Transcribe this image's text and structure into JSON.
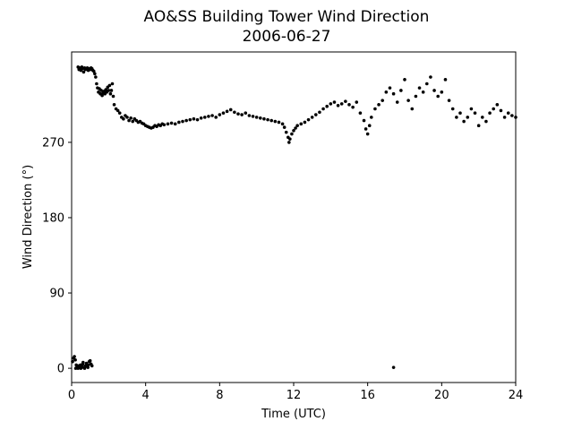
{
  "chart_data": {
    "type": "scatter",
    "title": "AO&SS Building Tower Wind Direction",
    "subtitle": "2006-06-27",
    "xlabel": "Time (UTC)",
    "ylabel": "Wind Direction (°)",
    "xlim": [
      0,
      24
    ],
    "ylim": [
      -17,
      378
    ],
    "xticks": [
      0,
      4,
      8,
      12,
      16,
      20,
      24
    ],
    "yticks": [
      0,
      90,
      180,
      270
    ],
    "grid": false,
    "marker_color": "#000000",
    "series": [
      {
        "points": [
          [
            0.05,
            8
          ],
          [
            0.1,
            12
          ],
          [
            0.15,
            14
          ],
          [
            0.2,
            10
          ],
          [
            0.25,
            4
          ],
          [
            0.3,
            2
          ],
          [
            0.35,
            0
          ],
          [
            0.4,
            3
          ],
          [
            0.45,
            1
          ],
          [
            0.5,
            0
          ],
          [
            0.55,
            2
          ],
          [
            0.6,
            5
          ],
          [
            0.65,
            1
          ],
          [
            0.7,
            0
          ],
          [
            0.75,
            3
          ],
          [
            0.8,
            6
          ],
          [
            0.85,
            2
          ],
          [
            0.9,
            4
          ],
          [
            0.95,
            8
          ],
          [
            1.0,
            9
          ],
          [
            1.05,
            5
          ],
          [
            1.1,
            3
          ],
          [
            0.22,
            0
          ],
          [
            0.48,
            4
          ],
          [
            0.62,
            7
          ],
          [
            0.88,
            1
          ],
          [
            0.35,
            360
          ],
          [
            0.4,
            357
          ],
          [
            0.45,
            359
          ],
          [
            0.5,
            356
          ],
          [
            0.55,
            360
          ],
          [
            0.6,
            358
          ],
          [
            0.65,
            354
          ],
          [
            0.7,
            359
          ],
          [
            0.75,
            357
          ],
          [
            0.8,
            358
          ],
          [
            0.85,
            359
          ],
          [
            0.9,
            356
          ],
          [
            0.95,
            358
          ],
          [
            1.0,
            357
          ],
          [
            1.05,
            359
          ],
          [
            1.1,
            358
          ],
          [
            1.15,
            356
          ],
          [
            1.2,
            355
          ],
          [
            1.25,
            352
          ],
          [
            1.3,
            348
          ],
          [
            1.35,
            340
          ],
          [
            1.4,
            335
          ],
          [
            1.45,
            330
          ],
          [
            1.5,
            334
          ],
          [
            1.55,
            328
          ],
          [
            1.6,
            332
          ],
          [
            1.65,
            326
          ],
          [
            1.7,
            329
          ],
          [
            1.75,
            331
          ],
          [
            1.8,
            328
          ],
          [
            1.85,
            333
          ],
          [
            1.9,
            330
          ],
          [
            1.95,
            336
          ],
          [
            2.0,
            332
          ],
          [
            2.05,
            338
          ],
          [
            2.1,
            328
          ],
          [
            2.15,
            332
          ],
          [
            2.2,
            340
          ],
          [
            2.25,
            325
          ],
          [
            2.3,
            315
          ],
          [
            2.4,
            310
          ],
          [
            2.5,
            308
          ],
          [
            2.6,
            305
          ],
          [
            2.7,
            300
          ],
          [
            2.8,
            298
          ],
          [
            2.9,
            302
          ],
          [
            3.0,
            300
          ],
          [
            3.1,
            296
          ],
          [
            3.2,
            299
          ],
          [
            3.3,
            295
          ],
          [
            3.4,
            298
          ],
          [
            3.5,
            296
          ],
          [
            3.6,
            294
          ],
          [
            3.7,
            295
          ],
          [
            3.8,
            293
          ],
          [
            3.9,
            292
          ],
          [
            4.0,
            290
          ],
          [
            4.1,
            289
          ],
          [
            4.2,
            288
          ],
          [
            4.3,
            287
          ],
          [
            4.4,
            288
          ],
          [
            4.5,
            290
          ],
          [
            4.6,
            289
          ],
          [
            4.7,
            291
          ],
          [
            4.8,
            290
          ],
          [
            4.9,
            292
          ],
          [
            5.0,
            291
          ],
          [
            5.2,
            292
          ],
          [
            5.4,
            293
          ],
          [
            5.6,
            292
          ],
          [
            5.8,
            294
          ],
          [
            6.0,
            295
          ],
          [
            6.2,
            296
          ],
          [
            6.4,
            297
          ],
          [
            6.6,
            298
          ],
          [
            6.8,
            297
          ],
          [
            7.0,
            299
          ],
          [
            7.2,
            300
          ],
          [
            7.4,
            301
          ],
          [
            7.6,
            302
          ],
          [
            7.8,
            300
          ],
          [
            8.0,
            303
          ],
          [
            8.2,
            305
          ],
          [
            8.4,
            307
          ],
          [
            8.6,
            309
          ],
          [
            8.8,
            306
          ],
          [
            9.0,
            304
          ],
          [
            9.2,
            303
          ],
          [
            9.4,
            305
          ],
          [
            9.6,
            302
          ],
          [
            9.8,
            301
          ],
          [
            10.0,
            300
          ],
          [
            10.2,
            299
          ],
          [
            10.4,
            298
          ],
          [
            10.6,
            297
          ],
          [
            10.8,
            296
          ],
          [
            11.0,
            295
          ],
          [
            11.2,
            294
          ],
          [
            11.4,
            292
          ],
          [
            11.5,
            288
          ],
          [
            11.6,
            282
          ],
          [
            11.7,
            276
          ],
          [
            11.75,
            270
          ],
          [
            11.8,
            274
          ],
          [
            11.9,
            280
          ],
          [
            12.0,
            284
          ],
          [
            12.1,
            287
          ],
          [
            12.2,
            290
          ],
          [
            12.4,
            292
          ],
          [
            12.6,
            294
          ],
          [
            12.8,
            297
          ],
          [
            13.0,
            300
          ],
          [
            13.2,
            303
          ],
          [
            13.4,
            306
          ],
          [
            13.6,
            310
          ],
          [
            13.8,
            313
          ],
          [
            14.0,
            316
          ],
          [
            14.2,
            318
          ],
          [
            14.4,
            314
          ],
          [
            14.6,
            316
          ],
          [
            14.8,
            319
          ],
          [
            15.0,
            315
          ],
          [
            15.2,
            312
          ],
          [
            15.4,
            318
          ],
          [
            15.6,
            305
          ],
          [
            15.8,
            296
          ],
          [
            15.9,
            286
          ],
          [
            16.0,
            280
          ],
          [
            16.1,
            290
          ],
          [
            16.2,
            300
          ],
          [
            16.4,
            310
          ],
          [
            16.6,
            315
          ],
          [
            16.8,
            320
          ],
          [
            17.0,
            330
          ],
          [
            17.2,
            335
          ],
          [
            17.4,
            328
          ],
          [
            17.6,
            318
          ],
          [
            17.8,
            332
          ],
          [
            18.0,
            345
          ],
          [
            18.2,
            320
          ],
          [
            18.4,
            310
          ],
          [
            18.6,
            325
          ],
          [
            18.8,
            335
          ],
          [
            19.0,
            330
          ],
          [
            19.2,
            340
          ],
          [
            19.4,
            348
          ],
          [
            19.6,
            332
          ],
          [
            19.8,
            325
          ],
          [
            20.0,
            330
          ],
          [
            20.2,
            345
          ],
          [
            20.4,
            320
          ],
          [
            20.6,
            310
          ],
          [
            20.8,
            300
          ],
          [
            21.0,
            305
          ],
          [
            21.2,
            295
          ],
          [
            21.4,
            300
          ],
          [
            21.6,
            310
          ],
          [
            21.8,
            305
          ],
          [
            22.0,
            290
          ],
          [
            22.2,
            300
          ],
          [
            22.4,
            295
          ],
          [
            22.6,
            305
          ],
          [
            22.8,
            310
          ],
          [
            23.0,
            315
          ],
          [
            23.2,
            308
          ],
          [
            23.4,
            300
          ],
          [
            23.6,
            305
          ],
          [
            23.8,
            302
          ],
          [
            24.0,
            300
          ],
          [
            17.4,
            1
          ]
        ]
      }
    ]
  }
}
